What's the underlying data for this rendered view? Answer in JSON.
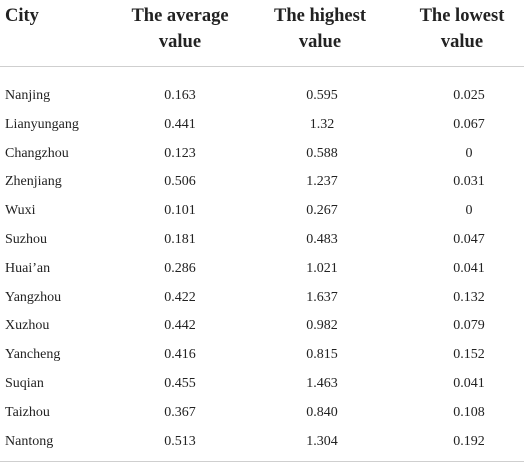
{
  "table": {
    "headers": [
      [
        "City"
      ],
      [
        "The average",
        "value"
      ],
      [
        "The highest",
        "value"
      ],
      [
        "The lowest",
        "value"
      ]
    ],
    "rows": [
      [
        "Nanjing",
        "0.163",
        "0.595",
        "0.025"
      ],
      [
        "Lianyungang",
        "0.441",
        "1.32",
        "0.067"
      ],
      [
        "Changzhou",
        "0.123",
        "0.588",
        "0"
      ],
      [
        "Zhenjiang",
        "0.506",
        "1.237",
        "0.031"
      ],
      [
        "Wuxi",
        "0.101",
        "0.267",
        "0"
      ],
      [
        "Suzhou",
        "0.181",
        "0.483",
        "0.047"
      ],
      [
        "Huai’an",
        "0.286",
        "1.021",
        "0.041"
      ],
      [
        "Yangzhou",
        "0.422",
        "1.637",
        "0.132"
      ],
      [
        "Xuzhou",
        "0.442",
        "0.982",
        "0.079"
      ],
      [
        "Yancheng",
        "0.416",
        "0.815",
        "0.152"
      ],
      [
        "Suqian",
        "0.455",
        "1.463",
        "0.041"
      ],
      [
        "Taizhou",
        "0.367",
        "0.840",
        "0.108"
      ],
      [
        "Nantong",
        "0.513",
        "1.304",
        "0.192"
      ]
    ]
  },
  "colors": {
    "text": "#222222",
    "rule": "#cfcfcf",
    "background": "#ffffff"
  }
}
